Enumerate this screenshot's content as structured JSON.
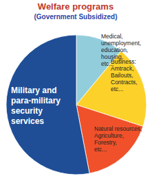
{
  "chart_data": {
    "type": "pie",
    "title": "Welfare programs",
    "subtitle": "(Government Subsidized)",
    "categories": [
      "Medical,\nunemployment,\neducation,\nhousing,\netc...",
      "Business:\nAmtrack,\nBailouts,\nContracts,\netc...",
      "Natural resources,\nAgriculture,\nForestry,\netc...",
      "Military and\npara-military\nsecurity\nservices"
    ],
    "values": [
      11,
      19,
      17,
      53
    ],
    "colors": [
      "#92cddc",
      "#fcd12a",
      "#f0512a",
      "#1f4e96"
    ]
  }
}
